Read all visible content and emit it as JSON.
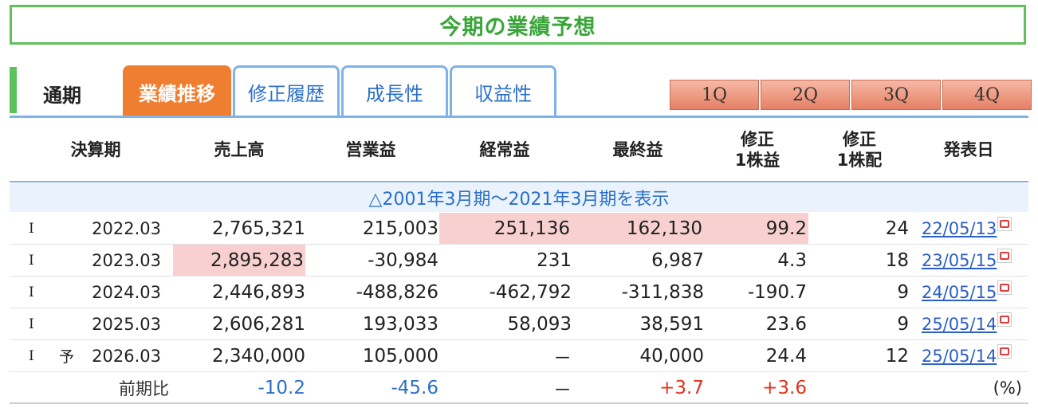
{
  "title": "今期の業績予想",
  "tabs": {
    "static": "通期",
    "items": [
      "業績推移",
      "修正履歴",
      "成長性",
      "収益性"
    ],
    "quarters": [
      "1Q",
      "2Q",
      "3Q",
      "4Q"
    ]
  },
  "headers": {
    "period": "決算期",
    "sales": "売上高",
    "operating": "営業益",
    "ordinary": "経常益",
    "net": "最終益",
    "eps_l1": "修正",
    "eps_l2": "1株益",
    "div_l1": "修正",
    "div_l2": "1株配",
    "date": "発表日"
  },
  "toggle": "△2001年3月期～2021年3月期を表示",
  "rows": [
    {
      "mark": "I",
      "yo": "",
      "period": "2022.03",
      "sales": "2,765,321",
      "operating": "215,003",
      "ordinary": "251,136",
      "net": "162,130",
      "eps": "99.2",
      "div": "24",
      "date": "22/05/13"
    },
    {
      "mark": "I",
      "yo": "",
      "period": "2023.03",
      "sales": "2,895,283",
      "operating": "-30,984",
      "ordinary": "231",
      "net": "6,987",
      "eps": "4.3",
      "div": "18",
      "date": "23/05/15"
    },
    {
      "mark": "I",
      "yo": "",
      "period": "2024.03",
      "sales": "2,446,893",
      "operating": "-488,826",
      "ordinary": "-462,792",
      "net": "-311,838",
      "eps": "-190.7",
      "div": "9",
      "date": "24/05/15"
    },
    {
      "mark": "I",
      "yo": "",
      "period": "2025.03",
      "sales": "2,606,281",
      "operating": "193,033",
      "ordinary": "58,093",
      "net": "38,591",
      "eps": "23.6",
      "div": "9",
      "date": "25/05/14"
    },
    {
      "mark": "I",
      "yo": "予",
      "period": "2026.03",
      "sales": "2,340,000",
      "operating": "105,000",
      "ordinary": "－",
      "net": "40,000",
      "eps": "24.4",
      "div": "12",
      "date": "25/05/14"
    }
  ],
  "comparison": {
    "label": "前期比",
    "sales": "-10.2",
    "operating": "-45.6",
    "ordinary": "－",
    "net": "+3.7",
    "eps": "+3.6",
    "unit": "(%)"
  },
  "colors": {
    "green": "#5cc35a",
    "tab_blue": "#7fb3e8",
    "active_orange": "#f07e30",
    "highlight_pink": "#f9d0d0",
    "negative_blue": "#2b6fc9",
    "positive_red": "#e0331d"
  }
}
